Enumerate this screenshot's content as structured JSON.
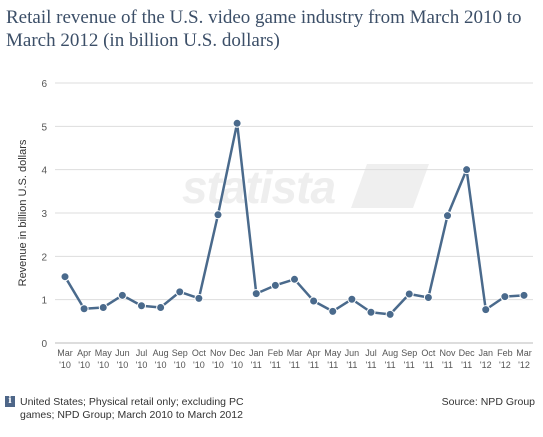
{
  "title": "Retail revenue of the U.S. video game industry from March 2010 to March 2012 (in billion U.S. dollars)",
  "watermark": "statista",
  "footer": {
    "info_icon": "i",
    "note": "United States; Physical retail only; excluding PC games; NPD Group; March 2010 to March 2012",
    "source": "Source: NPD Group"
  },
  "colors": {
    "line": "#4a6a8c",
    "title": "#3c4f68",
    "grid": "#dddddd"
  },
  "chart_data": {
    "type": "line",
    "title": "Retail revenue of the U.S. video game industry from March 2010 to March 2012 (in billion U.S. dollars)",
    "xlabel": "",
    "ylabel": "Revenue in billion U.S. dollars",
    "ylim": [
      0,
      6
    ],
    "yticks": [
      0,
      1,
      2,
      3,
      4,
      5,
      6
    ],
    "grid": true,
    "categories": [
      [
        "Mar",
        "'10"
      ],
      [
        "Apr",
        "'10"
      ],
      [
        "May",
        "'10"
      ],
      [
        "Jun",
        "'10"
      ],
      [
        "Jul",
        "'10"
      ],
      [
        "Aug",
        "'10"
      ],
      [
        "Sep",
        "'10"
      ],
      [
        "Oct",
        "'10"
      ],
      [
        "Nov",
        "'10"
      ],
      [
        "Dec",
        "'10"
      ],
      [
        "Jan",
        "'11"
      ],
      [
        "Feb",
        "'11"
      ],
      [
        "Mar",
        "'11"
      ],
      [
        "Apr",
        "'11"
      ],
      [
        "May",
        "'11"
      ],
      [
        "Jun",
        "'11"
      ],
      [
        "Jul",
        "'11"
      ],
      [
        "Aug",
        "'11"
      ],
      [
        "Sep",
        "'11"
      ],
      [
        "Oct",
        "'11"
      ],
      [
        "Nov",
        "'11"
      ],
      [
        "Dec",
        "'11"
      ],
      [
        "Jan",
        "'12"
      ],
      [
        "Feb",
        "'12"
      ],
      [
        "Mar",
        "'12"
      ]
    ],
    "series": [
      {
        "values": [
          1.53,
          0.79,
          0.82,
          1.1,
          0.86,
          0.82,
          1.18,
          1.03,
          2.96,
          5.07,
          1.14,
          1.33,
          1.47,
          0.97,
          0.73,
          1.01,
          0.71,
          0.66,
          1.13,
          1.05,
          2.94,
          4.0,
          0.77,
          1.07,
          1.1
        ]
      }
    ]
  }
}
